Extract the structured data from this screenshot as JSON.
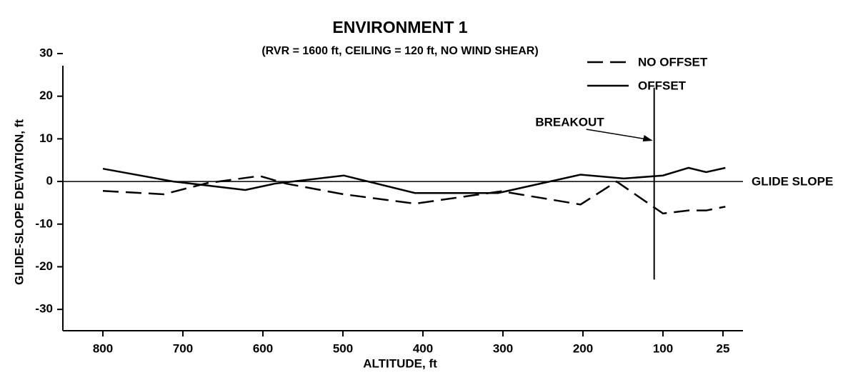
{
  "chart_data": {
    "type": "line",
    "title": "ENVIRONMENT 1",
    "subtitle": "(RVR = 1600 ft, CEILING = 120 ft, NO WIND SHEAR)",
    "x_label": "ALTITUDE, ft",
    "y_label": "GLIDE-SLOPE DEVIATION, ft",
    "xlim": [
      850,
      0
    ],
    "xticks": [
      800,
      700,
      600,
      500,
      400,
      300,
      200,
      100,
      25
    ],
    "ylim": [
      -35,
      30
    ],
    "yticks": [
      30,
      20,
      10,
      0,
      -10,
      -20,
      -30
    ],
    "legend": "top-right",
    "series": [
      {
        "name": "NO OFFSET",
        "color": "#000000",
        "linestyle": "dashed",
        "x": [
          800,
          724,
          670,
          604,
          571,
          499,
          410,
          302,
          203,
          158,
          100,
          68,
          46,
          22
        ],
        "values": [
          -2.2,
          -3,
          -0.4,
          1.3,
          -0.5,
          -3,
          -5.2,
          -2.3,
          -5.4,
          0,
          -7.5,
          -6.8,
          -6.8,
          -5.9
        ]
      },
      {
        "name": "OFFSET",
        "color": "#000000",
        "linestyle": "solid",
        "x": [
          800,
          712,
          622,
          585,
          499,
          410,
          306,
          203,
          149,
          100,
          68,
          46,
          22
        ],
        "values": [
          3,
          0,
          -2,
          -0.5,
          1.4,
          -2.7,
          -2.7,
          1.6,
          0.7,
          1.4,
          3.2,
          2.2,
          3.2
        ]
      }
    ],
    "reference_line": {
      "text": "GLIDE SLOPE",
      "y": 0
    },
    "annotation": {
      "text": "BREAKOUT",
      "x": 111,
      "y_range": [
        -23,
        22
      ]
    }
  }
}
